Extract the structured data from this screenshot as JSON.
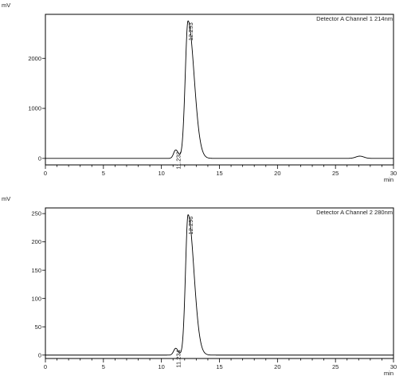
{
  "chart_data": [
    {
      "type": "line",
      "ylabel": "mV",
      "xlabel": "min",
      "legend": "Detector A Channel 1 214nm",
      "legend_position": "top-right",
      "xlim": [
        0,
        30
      ],
      "ylim": [
        -130,
        2880
      ],
      "x_ticks": [
        0,
        5,
        10,
        15,
        20,
        25,
        30
      ],
      "y_ticks": [
        0,
        1000,
        2000
      ],
      "peaks": [
        {
          "label": "12.293",
          "x": 12.293,
          "y": 2750,
          "width": 0.24,
          "tail": 0.52
        },
        {
          "label": "11.232",
          "x": 11.232,
          "y": 170,
          "width": 0.18,
          "tail": 0.22
        },
        {
          "label": "",
          "x": 27.1,
          "y": 45,
          "width": 0.35,
          "tail": 0.35
        }
      ],
      "series": [
        {
          "x": [
            0,
            10.8,
            11.0,
            11.232,
            11.5,
            11.75,
            11.9,
            12.0,
            12.1,
            12.2,
            12.293,
            12.4,
            12.55,
            12.7,
            12.85,
            13.0,
            13.2,
            13.4,
            13.7,
            14.0,
            14.5,
            15.0,
            20.0,
            26.0,
            26.6,
            27.1,
            27.6,
            28.2,
            30.0
          ],
          "y": [
            0,
            0,
            40,
            170,
            80,
            20,
            300,
            1000,
            1900,
            2500,
            2750,
            2500,
            1900,
            1300,
            850,
            500,
            260,
            130,
            55,
            25,
            10,
            5,
            0,
            0,
            15,
            45,
            25,
            5,
            0
          ]
        }
      ]
    },
    {
      "type": "line",
      "ylabel": "mV",
      "xlabel": "min",
      "legend": "Detector A Channel 2 280nm",
      "legend_position": "top-right",
      "xlim": [
        0,
        30
      ],
      "ylim": [
        -6,
        260
      ],
      "x_ticks": [
        0,
        5,
        10,
        15,
        20,
        25,
        30
      ],
      "y_ticks": [
        0,
        50,
        100,
        150,
        200,
        250
      ],
      "peaks": [
        {
          "label": "12.296",
          "x": 12.296,
          "y": 248,
          "width": 0.22,
          "tail": 0.5
        },
        {
          "label": "11.234",
          "x": 11.234,
          "y": 12,
          "width": 0.18,
          "tail": 0.2
        }
      ],
      "series": [
        {
          "x": [
            0,
            10.8,
            11.0,
            11.234,
            11.5,
            11.75,
            11.9,
            12.0,
            12.1,
            12.2,
            12.296,
            12.4,
            12.55,
            12.7,
            12.85,
            13.0,
            13.2,
            13.4,
            13.7,
            14.0,
            15.0,
            30.0
          ],
          "y": [
            0,
            0,
            3,
            12,
            5,
            2,
            25,
            90,
            170,
            225,
            248,
            225,
            170,
            115,
            75,
            45,
            22,
            11,
            4,
            2,
            0,
            0
          ]
        }
      ]
    }
  ]
}
